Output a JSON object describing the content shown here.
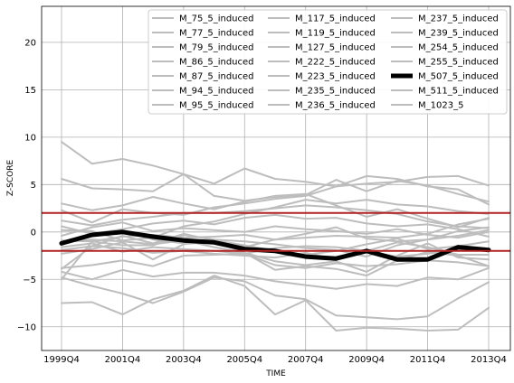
{
  "chart_data": {
    "type": "line",
    "xlabel": "TIME",
    "ylabel": "Z-SCORE",
    "x": [
      "1999Q4",
      "2000Q4",
      "2001Q4",
      "2002Q4",
      "2003Q4",
      "2004Q4",
      "2005Q4",
      "2006Q4",
      "2007Q4",
      "2008Q4",
      "2009Q4",
      "2010Q4",
      "2011Q4",
      "2012Q4",
      "2013Q4"
    ],
    "x_tick_labels": [
      "1999Q4",
      "2001Q4",
      "2003Q4",
      "2005Q4",
      "2007Q4",
      "2009Q4",
      "2011Q4",
      "2013Q4"
    ],
    "ylim": [
      -12.5,
      23.8
    ],
    "y_ticks": [
      -10,
      -5,
      0,
      5,
      10,
      15,
      20
    ],
    "y_tick_labels": [
      "−10",
      "−5",
      "0",
      "5",
      "10",
      "15",
      "20"
    ],
    "grid": true,
    "legend_position": "top-right",
    "legend_columns": 3,
    "threshold_lines": {
      "values": [
        2.0,
        -2.0
      ],
      "color": "#b22222"
    },
    "highlight_color": "#000000",
    "series_color": "#bdbdbd",
    "series": [
      {
        "name": "M_75_5_induced",
        "highlight": false,
        "values": [
          9.5,
          7.2,
          7.7,
          7.0,
          6.1,
          5.1,
          6.7,
          5.6,
          5.3,
          4.8,
          5.9,
          5.6,
          4.8,
          4.5,
          2.9
        ]
      },
      {
        "name": "M_77_5_induced",
        "highlight": false,
        "values": [
          5.6,
          4.6,
          4.5,
          4.3,
          6.1,
          3.8,
          3.3,
          3.7,
          3.9,
          5.5,
          4.3,
          5.4,
          4.9,
          4.0,
          3.2
        ]
      },
      {
        "name": "M_79_5_induced",
        "highlight": false,
        "values": [
          3.0,
          2.3,
          2.8,
          3.7,
          3.0,
          2.4,
          3.2,
          3.8,
          4.0,
          2.8,
          1.6,
          2.4,
          1.4,
          0.5,
          1.5
        ]
      },
      {
        "name": "M_86_5_induced",
        "highlight": false,
        "values": [
          2.3,
          1.0,
          2.4,
          2.0,
          1.8,
          2.6,
          3.0,
          3.5,
          3.8,
          4.8,
          5.1,
          5.3,
          5.8,
          5.9,
          4.9
        ]
      },
      {
        "name": "M_87_5_induced",
        "highlight": false,
        "values": [
          1.2,
          0.7,
          1.3,
          1.6,
          2.0,
          2.0,
          2.2,
          2.5,
          2.8,
          2.6,
          2.3,
          1.9,
          1.1,
          0.6,
          0.4
        ]
      },
      {
        "name": "M_94_5_induced",
        "highlight": false,
        "values": [
          0.6,
          -0.2,
          0.3,
          0.9,
          1.2,
          0.8,
          1.5,
          1.8,
          1.4,
          1.5,
          0.9,
          0.6,
          0.8,
          0.3,
          -0.5
        ]
      },
      {
        "name": "M_95_5_induced",
        "highlight": false,
        "values": [
          -0.4,
          0.5,
          1.0,
          0.1,
          0.4,
          0.2,
          0.0,
          0.6,
          0.3,
          0.1,
          -0.2,
          0.3,
          -0.3,
          -0.6,
          0.0
        ]
      },
      {
        "name": "M_117_5_induced",
        "highlight": false,
        "values": [
          -0.9,
          -1.0,
          -0.5,
          -0.3,
          -0.6,
          -0.5,
          -0.3,
          -0.8,
          -0.6,
          -0.4,
          -0.5,
          -0.6,
          -0.2,
          0.8,
          1.4
        ]
      },
      {
        "name": "M_119_5_induced",
        "highlight": false,
        "values": [
          -1.3,
          -0.4,
          0.2,
          -0.8,
          -1.2,
          -0.9,
          -1.4,
          -2.0,
          -2.4,
          -2.0,
          -1.3,
          -0.7,
          -1.8,
          -1.5,
          -1.0
        ]
      },
      {
        "name": "M_127_5_induced",
        "highlight": false,
        "values": [
          -1.6,
          -1.2,
          -2.1,
          -1.6,
          -1.8,
          -2.0,
          -2.3,
          -1.7,
          -1.5,
          -1.6,
          -2.0,
          -1.1,
          -1.6,
          -2.4,
          -2.4
        ]
      },
      {
        "name": "M_222_5_induced",
        "highlight": false,
        "values": [
          -1.9,
          -1.5,
          -1.7,
          -2.2,
          -2.0,
          -2.3,
          -2.5,
          -2.7,
          -2.2,
          -2.9,
          -2.0,
          -2.6,
          -2.3,
          -1.8,
          -2.0
        ]
      },
      {
        "name": "M_223_5_induced",
        "highlight": false,
        "values": [
          -2.3,
          -1.8,
          -1.1,
          -2.9,
          -1.3,
          -1.0,
          -2.2,
          -3.1,
          -3.5,
          -3.1,
          -4.2,
          -2.5,
          -1.2,
          -2.7,
          -2.9
        ]
      },
      {
        "name": "M_235_5_induced",
        "highlight": false,
        "values": [
          -3.8,
          -3.5,
          -3.0,
          -3.6,
          -2.5,
          -2.4,
          -2.3,
          -3.5,
          -3.8,
          -3.3,
          -3.6,
          -3.4,
          -3.0,
          -3.2,
          -3.6
        ]
      },
      {
        "name": "M_236_5_induced",
        "highlight": false,
        "values": [
          -4.2,
          -5.0,
          -4.0,
          -4.7,
          -4.3,
          -4.3,
          -4.6,
          -5.2,
          -5.6,
          -6.0,
          -5.5,
          -5.7,
          -4.8,
          -5.0,
          -3.8
        ]
      },
      {
        "name": "M_237_5_induced",
        "highlight": false,
        "values": [
          -4.8,
          -5.7,
          -6.5,
          -7.5,
          -6.3,
          -4.8,
          -5.2,
          -6.7,
          -7.1,
          -8.8,
          -9.0,
          -9.2,
          -8.9,
          -7.0,
          -5.3
        ]
      },
      {
        "name": "M_239_5_induced",
        "highlight": false,
        "values": [
          -7.5,
          -7.4,
          -8.7,
          -7.1,
          -6.2,
          -4.6,
          -5.7,
          -8.7,
          -7.2,
          -10.4,
          -10.1,
          -10.2,
          -10.4,
          -10.3,
          -8.0
        ]
      },
      {
        "name": "M_254_5_induced",
        "highlight": false,
        "values": [
          -3.9,
          -1.5,
          -0.4,
          -1.2,
          -0.2,
          -0.9,
          -1.6,
          -0.8,
          -0.2,
          0.5,
          -0.7,
          -1.0,
          -0.8,
          0.1,
          0.5
        ]
      },
      {
        "name": "M_255_5_induced",
        "highlight": false,
        "values": [
          -5.0,
          -1.0,
          -1.4,
          -1.4,
          -0.3,
          -0.8,
          -1.0,
          -1.3,
          -1.7,
          -1.9,
          -2.6,
          -1.4,
          -0.8,
          -0.4,
          0.2
        ]
      },
      {
        "name": "M_507_5_induced",
        "highlight": true,
        "values": [
          -1.2,
          -0.3,
          0.0,
          -0.5,
          -0.9,
          -1.1,
          -1.8,
          -2.0,
          -2.6,
          -2.8,
          -2.0,
          -2.9,
          -2.9,
          -1.6,
          -1.9
        ]
      },
      {
        "name": "M_511_5_induced",
        "highlight": false,
        "values": [
          0.2,
          0.1,
          -0.9,
          -0.6,
          0.6,
          1.1,
          1.9,
          2.6,
          3.4,
          3.0,
          3.4,
          2.9,
          2.7,
          2.2,
          1.9
        ]
      },
      {
        "name": "M_1023_5",
        "highlight": false,
        "values": [
          -1.1,
          -0.8,
          -1.0,
          -1.3,
          -0.9,
          -1.6,
          -2.2,
          -4.0,
          -3.6,
          -3.9,
          -4.6,
          -3.0,
          -2.1,
          -2.5,
          -3.6
        ]
      }
    ]
  }
}
